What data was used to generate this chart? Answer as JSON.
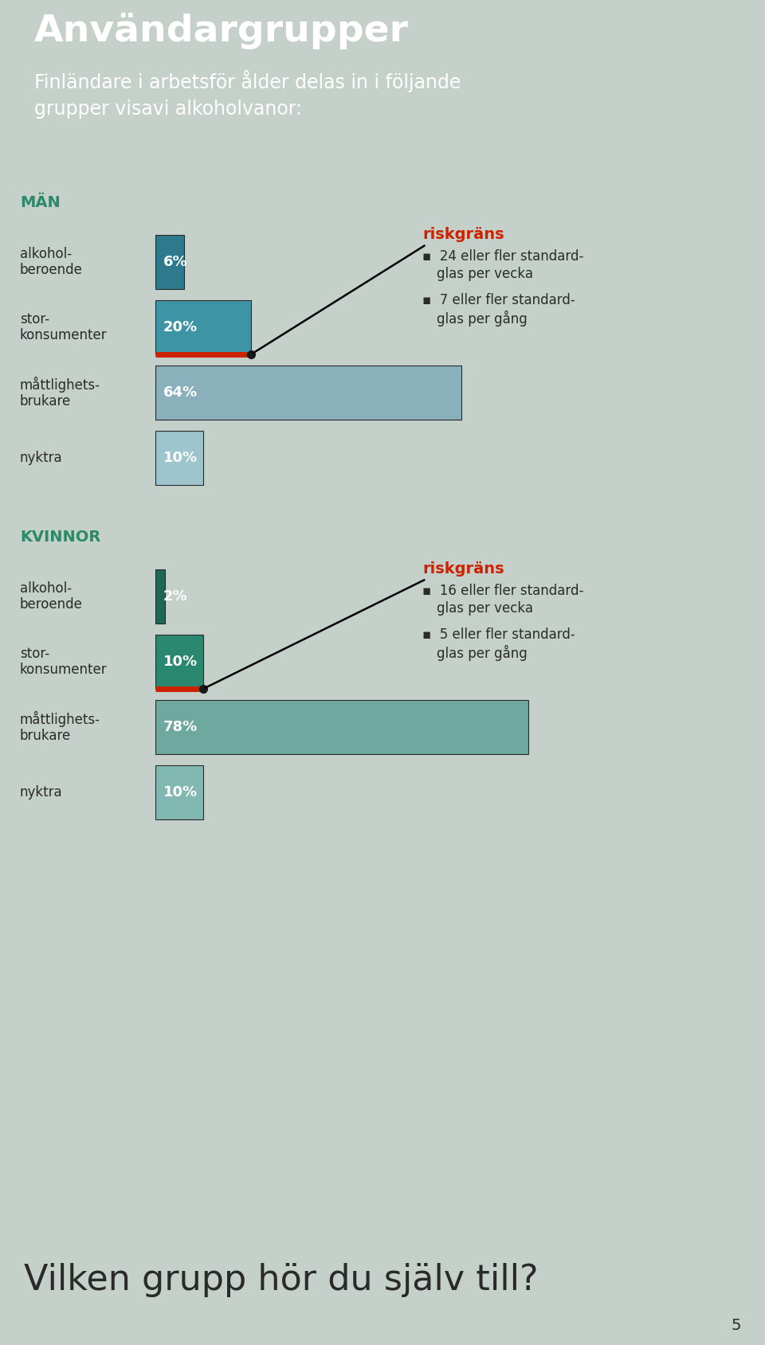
{
  "bg_header_color": "#1b5e4e",
  "bg_main_color": "#c5d0cb",
  "title": "Användargrupper",
  "subtitle": "Finländare i arbetsför ålder delas in i följande\ngrupper visavi alkoholvanor:",
  "title_color": "#ffffff",
  "subtitle_color": "#ffffff",
  "man_label": "MÄN",
  "kvinna_label": "KVINNOR",
  "section_label_color": "#2a8a6a",
  "categories": [
    "alkohol-\nberoende",
    "stor-\nkonsumenter",
    "måttlighets-\nbrukare",
    "nyktra"
  ],
  "man_values": [
    6,
    20,
    64,
    10
  ],
  "kvinna_values": [
    2,
    10,
    78,
    10
  ],
  "man_colors": [
    "#2e7a8c",
    "#3d94a4",
    "#8ab0bc",
    "#9ec4ce"
  ],
  "kvinna_colors": [
    "#1e6655",
    "#2a8870",
    "#6ea89e",
    "#82b8b2"
  ],
  "riskgrans_color": "#cc2200",
  "red_line_color": "#cc2200",
  "riskgrans_text": "riskgräns",
  "man_bullet1a": "24 eller fler standard-",
  "man_bullet1b": "glas per vecka",
  "man_bullet2a": "7 eller fler standard-",
  "man_bullet2b": "glas per gång",
  "kvinna_bullet1a": "16 eller fler standard-",
  "kvinna_bullet1b": "glas per vecka",
  "kvinna_bullet2a": "5 eller fler standard-",
  "kvinna_bullet2b": "glas per gång",
  "bottom_text": "Vilken grupp hör du själv till?",
  "page_number": "5",
  "body_text_color": "#2a2a2a",
  "bar_scale": 0.72
}
